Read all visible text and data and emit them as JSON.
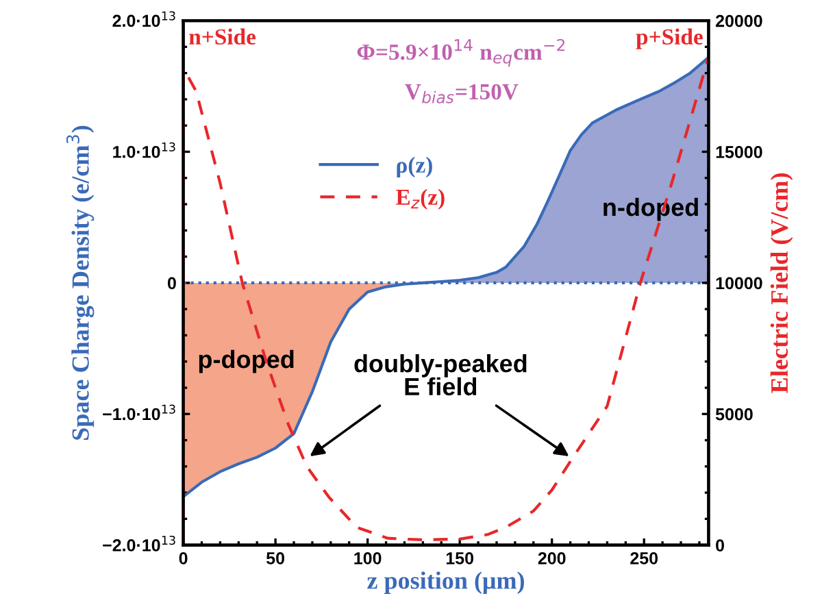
{
  "chart_data": {
    "type": "area",
    "xlabel": "z position (μm)",
    "ylabel": "Space Charge Density (e/cm$^{3}$)",
    "y2label": "Electric Field (V/cm)",
    "xlim": [
      0,
      285
    ],
    "xticks": [
      0,
      50,
      100,
      150,
      200,
      250
    ],
    "ylim": [
      -20000000000000.0,
      20000000000000.0
    ],
    "yticks": [
      {
        "value": -20000000000000.0,
        "label": "−2.0·10$^{13}$"
      },
      {
        "value": -10000000000000.0,
        "label": "−1.0·10$^{13}$"
      },
      {
        "value": 0,
        "label": "0"
      },
      {
        "value": 10000000000000.0,
        "label": "1.0·10$^{13}$"
      },
      {
        "value": 20000000000000.0,
        "label": "2.0·10$^{13}$"
      }
    ],
    "y2lim": [
      0,
      20000
    ],
    "y2ticks": [
      0,
      5000,
      10000,
      15000,
      20000
    ],
    "legend": "top",
    "grid": false,
    "series": [
      {
        "color": "#f4a58a",
        "x": [
          0,
          10,
          20,
          30,
          40,
          50,
          60,
          70,
          80,
          90,
          100,
          110,
          120,
          130
        ],
        "values": [
          -16300000000000.0,
          -15200000000000.0,
          -14400000000000.0,
          -13800000000000.0,
          -13300000000000.0,
          -12600000000000.0,
          -11500000000000.0,
          -8300000000000.0,
          -4500000000000.0,
          -2000000000000.0,
          -700000000000.0,
          -300000000000.0,
          -100000000000.0,
          0
        ]
      },
      {
        "color": "#9ba4d2",
        "x": [
          130,
          140,
          150,
          160,
          170,
          175,
          185,
          192,
          198,
          205,
          210,
          216,
          222,
          235,
          248,
          258,
          267,
          275,
          285
        ],
        "values": [
          0,
          100000000000.0,
          200000000000.0,
          400000000000.0,
          800000000000.0,
          1200000000000.0,
          2800000000000.0,
          4500000000000.0,
          6300000000000.0,
          8500000000000.0,
          10100000000000.0,
          11300000000000.0,
          12200000000000.0,
          13200000000000.0,
          14000000000000.0,
          14600000000000.0,
          15300000000000.0,
          16000000000000.0,
          17200000000000.0
        ]
      },
      {
        "name": "ρ(z)",
        "type": "line",
        "color": "#3a6ab8",
        "line_style": "solid",
        "x": [
          0,
          10,
          20,
          30,
          40,
          50,
          60,
          70,
          80,
          90,
          100,
          110,
          120,
          130,
          140,
          150,
          160,
          170,
          175,
          185,
          192,
          198,
          205,
          210,
          216,
          222,
          235,
          248,
          258,
          267,
          275,
          285
        ],
        "values": [
          -16300000000000.0,
          -15200000000000.0,
          -14400000000000.0,
          -13800000000000.0,
          -13300000000000.0,
          -12600000000000.0,
          -11500000000000.0,
          -8300000000000.0,
          -4500000000000.0,
          -2000000000000.0,
          -700000000000.0,
          -300000000000.0,
          -100000000000.0,
          0,
          100000000000.0,
          200000000000.0,
          400000000000.0,
          800000000000.0,
          1200000000000.0,
          2800000000000.0,
          4500000000000.0,
          6300000000000.0,
          8500000000000.0,
          10100000000000.0,
          11300000000000.0,
          12200000000000.0,
          13200000000000.0,
          14000000000000.0,
          14600000000000.0,
          15300000000000.0,
          16000000000000.0,
          17200000000000.0
        ]
      },
      {
        "name": "E$_{z}$(z)",
        "type": "line",
        "axis": "y2",
        "color": "#e8272a",
        "line_style": "dashed",
        "x": [
          0,
          0,
          7,
          20,
          32,
          45,
          57,
          67,
          79,
          94,
          111,
          130,
          150,
          165,
          175,
          190,
          200,
          211,
          230,
          248,
          265,
          285,
          285
        ],
        "values": [
          0,
          18200,
          17300,
          13800,
          10000,
          7000,
          4600,
          3000,
          1830,
          680,
          260,
          200,
          230,
          400,
          680,
          1300,
          2100,
          3300,
          5300,
          10000,
          13800,
          18600,
          0
        ]
      }
    ],
    "ref_lines": [
      {
        "axis": "y",
        "value": 0,
        "color": "#3a6ab8",
        "line_style": "dotted"
      }
    ],
    "annotations": [
      "n+Side",
      "p+Side",
      "Φ=5.9×10$^{14}$ n$_{eq}$cm$^{−2}$",
      "V$_{bias}$=150V",
      "p-doped",
      "n-doped",
      {
        "text": "doubly-peaked\nE field",
        "x": 211,
        "y": -13400000000000.0
      }
    ]
  }
}
